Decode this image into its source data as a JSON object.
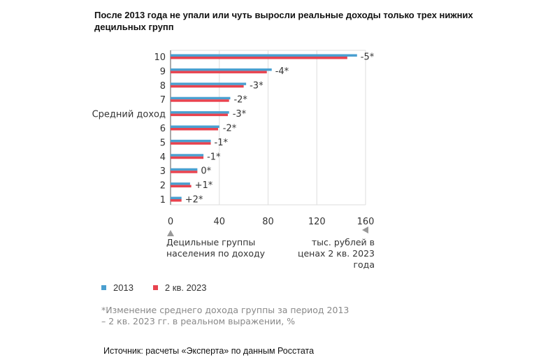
{
  "title": "После 2013 года не упали или чуть выросли реальные доходы только трех нижних децильных групп",
  "xlabel": "Децильные группы населения по доходу",
  "unit_label": "тыс. рублей в ценах 2 кв. 2023 года",
  "footnote": "*Изменение среднего дохода группы за период 2013 – 2 кв. 2023 гг. в реальном выражении, %",
  "source": "Источник: расчеты «Эксперта» по данным Росстата",
  "colors": {
    "s2013": "#4a9fd0",
    "s2023": "#e8434f",
    "grid": "#dddddd",
    "axis": "#555555"
  },
  "chart_data": {
    "type": "bar",
    "orientation": "horizontal",
    "categories": [
      "10",
      "9",
      "8",
      "7",
      "Средний доход",
      "6",
      "5",
      "4",
      "3",
      "2",
      "1"
    ],
    "series": [
      {
        "name": "2013",
        "values": [
          153,
          83,
          62,
          49,
          48,
          40,
          33,
          27,
          22,
          16,
          9
        ]
      },
      {
        "name": "2 кв. 2023",
        "values": [
          145,
          79,
          60,
          48,
          47,
          39,
          33,
          27,
          22,
          17,
          9
        ]
      }
    ],
    "value_labels": [
      "-5*",
      "-4*",
      "-3*",
      "-2*",
      "-3*",
      "-2*",
      "-1*",
      "-1*",
      "0*",
      "+1*",
      "+2*"
    ],
    "xticks": [
      "0",
      "40",
      "80",
      "120",
      "160"
    ],
    "xlim": [
      0,
      160
    ],
    "grid": true,
    "legend": "bottom-left"
  }
}
